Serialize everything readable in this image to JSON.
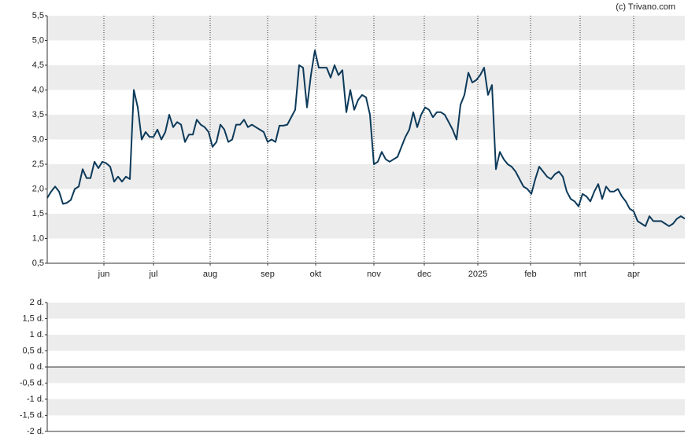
{
  "credit": "(c) Trivano.com",
  "chart_data": [
    {
      "type": "line",
      "color": "#0d3a5a",
      "xlim": [
        0,
        162
      ],
      "xticks": [
        {
          "value": 14.4,
          "label": "jun"
        },
        {
          "value": 27,
          "label": "jul"
        },
        {
          "value": 41.4,
          "label": "aug"
        },
        {
          "value": 56,
          "label": "sep"
        },
        {
          "value": 68.2,
          "label": "okt"
        },
        {
          "value": 83,
          "label": "nov"
        },
        {
          "value": 95.8,
          "label": "dec"
        },
        {
          "value": 109.4,
          "label": "2025"
        },
        {
          "value": 122.8,
          "label": "feb"
        },
        {
          "value": 135.4,
          "label": "mrt"
        },
        {
          "value": 149,
          "label": "apr"
        }
      ],
      "ylim": [
        0.5,
        5.5
      ],
      "yticks": [
        {
          "value": 5.5,
          "label": "5,5"
        },
        {
          "value": 5.0,
          "label": "5,0"
        },
        {
          "value": 4.5,
          "label": "4,5"
        },
        {
          "value": 4.0,
          "label": "4,0"
        },
        {
          "value": 3.5,
          "label": "3,5"
        },
        {
          "value": 3.0,
          "label": "3,0"
        },
        {
          "value": 2.5,
          "label": "2,5"
        },
        {
          "value": 2.0,
          "label": "2,0"
        },
        {
          "value": 1.5,
          "label": "1,5"
        },
        {
          "value": 1.0,
          "label": "1,0"
        },
        {
          "value": 0.5,
          "label": "0,5"
        }
      ],
      "values": [
        1.82,
        1.95,
        2.05,
        1.95,
        1.7,
        1.72,
        1.78,
        2.0,
        2.05,
        2.4,
        2.22,
        2.22,
        2.55,
        2.42,
        2.55,
        2.52,
        2.45,
        2.15,
        2.25,
        2.15,
        2.25,
        2.2,
        4.0,
        3.65,
        3.0,
        3.15,
        3.05,
        3.05,
        3.2,
        3.0,
        3.15,
        3.5,
        3.25,
        3.35,
        3.3,
        2.95,
        3.1,
        3.1,
        3.4,
        3.3,
        3.25,
        3.15,
        2.85,
        2.95,
        3.3,
        3.2,
        2.95,
        3.0,
        3.3,
        3.3,
        3.4,
        3.25,
        3.3,
        3.25,
        3.2,
        3.15,
        2.95,
        3.0,
        2.95,
        3.28,
        3.28,
        3.3,
        3.45,
        3.6,
        4.5,
        4.45,
        3.65,
        4.3,
        4.8,
        4.45,
        4.45,
        4.45,
        4.25,
        4.5,
        4.3,
        4.4,
        3.55,
        4.0,
        3.6,
        3.8,
        3.9,
        3.85,
        3.5,
        2.5,
        2.55,
        2.75,
        2.6,
        2.55,
        2.6,
        2.65,
        2.85,
        3.05,
        3.2,
        3.55,
        3.25,
        3.5,
        3.65,
        3.6,
        3.45,
        3.55,
        3.55,
        3.5,
        3.35,
        3.2,
        3.0,
        3.7,
        3.9,
        4.35,
        4.15,
        4.2,
        4.3,
        4.45,
        3.9,
        4.1,
        2.4,
        2.75,
        2.6,
        2.5,
        2.45,
        2.35,
        2.2,
        2.05,
        2.0,
        1.9,
        2.2,
        2.45,
        2.35,
        2.25,
        2.2,
        2.3,
        2.35,
        2.25,
        1.95,
        1.8,
        1.75,
        1.65,
        1.9,
        1.85,
        1.75,
        1.95,
        2.1,
        1.8,
        2.05,
        1.95,
        1.95,
        2.0,
        1.85,
        1.75,
        1.6,
        1.55,
        1.35,
        1.3,
        1.25,
        1.45,
        1.35,
        1.35,
        1.35,
        1.3,
        1.25,
        1.3,
        1.4,
        1.45,
        1.4
      ]
    },
    {
      "type": "line",
      "ylim": [
        -2,
        2
      ],
      "yticks": [
        {
          "value": 2,
          "label": "2 d."
        },
        {
          "value": 1.5,
          "label": "1,5 d."
        },
        {
          "value": 1,
          "label": "1 d."
        },
        {
          "value": 0.5,
          "label": "0,5 d."
        },
        {
          "value": 0,
          "label": "0 d."
        },
        {
          "value": -0.5,
          "label": "-0,5 d."
        },
        {
          "value": -1,
          "label": "-1 d."
        },
        {
          "value": -1.5,
          "label": "-1,5 d."
        },
        {
          "value": -2,
          "label": "-2 d."
        }
      ]
    }
  ]
}
